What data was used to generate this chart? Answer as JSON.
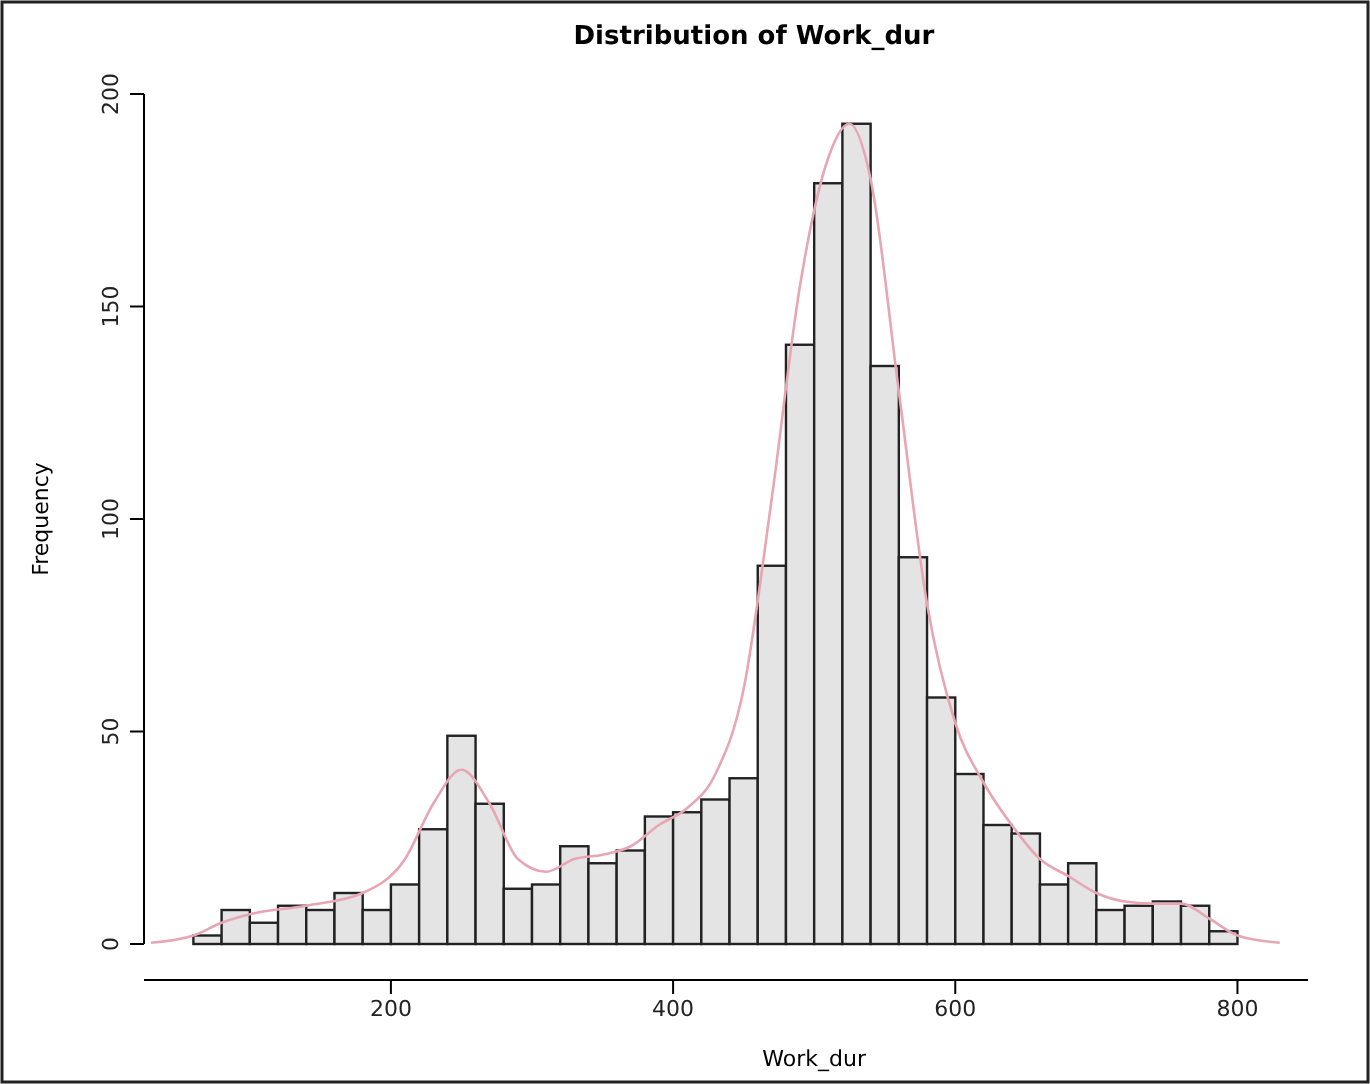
{
  "chart_data": {
    "type": "histogram",
    "title": "Distribution of Work_dur",
    "xlabel": "Work_dur",
    "ylabel": "Frequency",
    "bins": [
      60,
      80,
      100,
      120,
      140,
      160,
      180,
      200,
      220,
      240,
      260,
      280,
      300,
      320,
      340,
      360,
      380,
      400,
      420,
      440,
      460,
      480,
      500,
      520,
      540,
      560,
      580,
      600,
      620,
      640,
      660,
      680,
      700,
      720,
      740,
      760,
      780,
      800
    ],
    "values": [
      2,
      8,
      5,
      9,
      8,
      12,
      8,
      14,
      27,
      49,
      33,
      13,
      14,
      23,
      19,
      22,
      30,
      31,
      34,
      39,
      89,
      141,
      179,
      193,
      136,
      91,
      58,
      40,
      28,
      26,
      14,
      19,
      8,
      9,
      10,
      9,
      3
    ],
    "color": "#e4e4e4",
    "series": [
      {
        "type": "line",
        "color": "#e8a6b4",
        "x": [
          30,
          60,
          80,
          100,
          140,
          180,
          210,
          230,
          250,
          270,
          290,
          310,
          330,
          350,
          370,
          390,
          410,
          430,
          450,
          470,
          490,
          510,
          525,
          540,
          560,
          580,
          600,
          620,
          640,
          660,
          680,
          700,
          720,
          740,
          760,
          780,
          800,
          830
        ],
        "values": [
          0.3,
          2,
          5,
          7,
          9,
          12,
          20,
          33,
          41,
          33,
          20,
          17,
          20,
          21,
          23,
          28,
          32,
          40,
          60,
          105,
          155,
          185,
          193,
          180,
          130,
          80,
          52,
          38,
          28,
          20,
          16,
          12,
          10,
          9.5,
          9.5,
          6,
          2,
          0.3
        ]
      }
    ],
    "xlim": [
      25,
      850
    ],
    "ylim": [
      0,
      200
    ],
    "xticks": [
      200,
      400,
      600,
      800
    ],
    "yticks": [
      0,
      50,
      100,
      150,
      200
    ]
  }
}
